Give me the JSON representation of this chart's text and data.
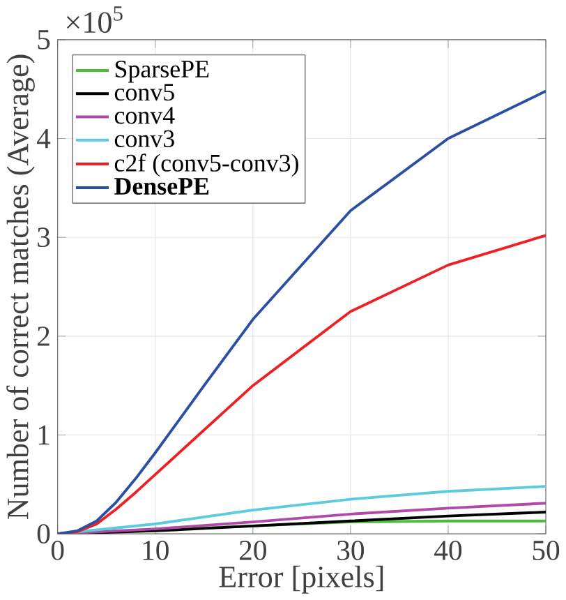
{
  "chart_data": {
    "type": "line",
    "xlabel": "Error [pixels]",
    "ylabel": "Number of correct matches (Average)",
    "annotations": [
      "×10$^{5}$"
    ],
    "xlim": [
      0,
      50
    ],
    "xticks": [
      0,
      10,
      20,
      30,
      40,
      50
    ],
    "ylim": [
      0,
      5
    ],
    "yticks": [
      0,
      1,
      2,
      3,
      4,
      5
    ],
    "grid": true,
    "legend": "top left",
    "line_style": "solid",
    "marker": "none",
    "series": [
      {
        "name": "SparsePE",
        "color": "#4dbb3c",
        "x": [
          0,
          10,
          20,
          30,
          40,
          50
        ],
        "values": [
          0,
          0.04,
          0.08,
          0.12,
          0.13,
          0.13
        ]
      },
      {
        "name": "conv5",
        "color": "#000000",
        "x": [
          0,
          10,
          20,
          30,
          40,
          50
        ],
        "values": [
          0,
          0.03,
          0.08,
          0.13,
          0.18,
          0.22
        ]
      },
      {
        "name": "conv4",
        "color": "#b04aa8",
        "x": [
          0,
          10,
          20,
          30,
          40,
          50
        ],
        "values": [
          0,
          0.05,
          0.12,
          0.2,
          0.26,
          0.31
        ]
      },
      {
        "name": "conv3",
        "color": "#5ccbdc",
        "x": [
          0,
          10,
          20,
          30,
          40,
          50
        ],
        "values": [
          0,
          0.1,
          0.24,
          0.35,
          0.43,
          0.48
        ]
      },
      {
        "name": "c2f (conv5-conv3)",
        "color": "#ee2024",
        "x": [
          0,
          2,
          4,
          6,
          8,
          10,
          15,
          20,
          30,
          40,
          50
        ],
        "values": [
          0,
          0.02,
          0.1,
          0.25,
          0.42,
          0.6,
          1.05,
          1.5,
          2.25,
          2.72,
          3.02
        ]
      },
      {
        "name": "**DensePE**",
        "color": "#2b4fa3",
        "x": [
          0,
          2,
          4,
          6,
          8,
          10,
          15,
          20,
          30,
          40,
          50
        ],
        "values": [
          0,
          0.03,
          0.13,
          0.32,
          0.56,
          0.82,
          1.5,
          2.17,
          3.27,
          4.0,
          4.48
        ]
      }
    ]
  }
}
